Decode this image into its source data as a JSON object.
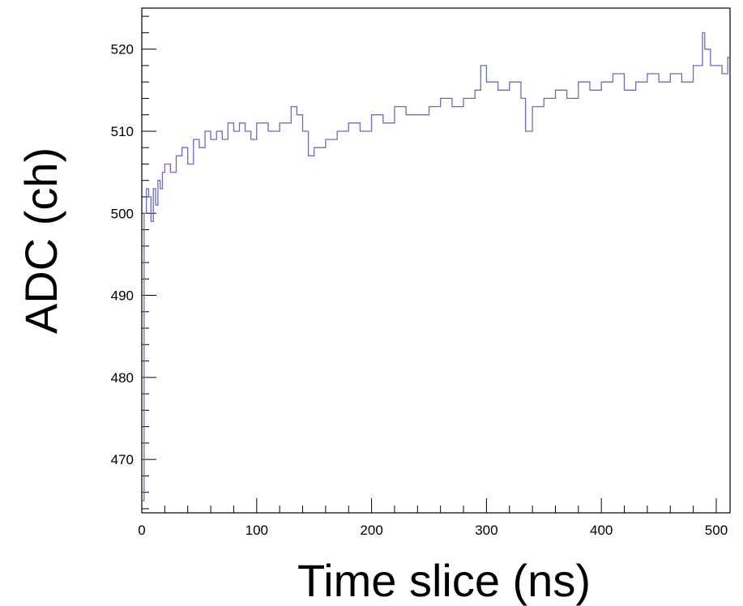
{
  "chart_data": {
    "type": "line",
    "style": "step",
    "title": "",
    "xlabel": "Time slice (ns)",
    "ylabel": "ADC (ch)",
    "xlim": [
      0,
      512
    ],
    "ylim": [
      463.5,
      525
    ],
    "grid": false,
    "legend": "none",
    "line_color": "#6b6bc4",
    "x_ticks": [
      0,
      100,
      200,
      300,
      400,
      500
    ],
    "y_ticks": [
      470,
      480,
      490,
      500,
      510,
      520
    ],
    "series": [
      {
        "x": [
          0,
          2,
          4,
          6,
          8,
          10,
          12,
          14,
          16,
          18,
          20,
          25,
          30,
          35,
          40,
          45,
          50,
          55,
          60,
          65,
          70,
          75,
          80,
          85,
          90,
          95,
          100,
          110,
          120,
          130,
          135,
          140,
          145,
          150,
          160,
          170,
          180,
          190,
          200,
          210,
          220,
          230,
          240,
          250,
          260,
          270,
          280,
          290,
          295,
          300,
          310,
          320,
          330,
          334,
          340,
          350,
          360,
          370,
          380,
          390,
          400,
          410,
          420,
          430,
          440,
          450,
          460,
          470,
          480,
          488,
          490,
          495,
          500,
          505,
          510
        ],
        "y": [
          465,
          500,
          503,
          502,
          499,
          503,
          501,
          504,
          503,
          505,
          506,
          505,
          507,
          508,
          506,
          509,
          508,
          510,
          509,
          510,
          509,
          511,
          510,
          511,
          510,
          509,
          511,
          510,
          511,
          513,
          512,
          510,
          507,
          508,
          509,
          510,
          511,
          510,
          512,
          511,
          513,
          512,
          512,
          513,
          514,
          513,
          514,
          515,
          518,
          516,
          515,
          516,
          514,
          510,
          513,
          514,
          515,
          514,
          516,
          515,
          516,
          517,
          515,
          516,
          517,
          516,
          517,
          516,
          518,
          522,
          520,
          518,
          518,
          517,
          519
        ]
      }
    ]
  }
}
